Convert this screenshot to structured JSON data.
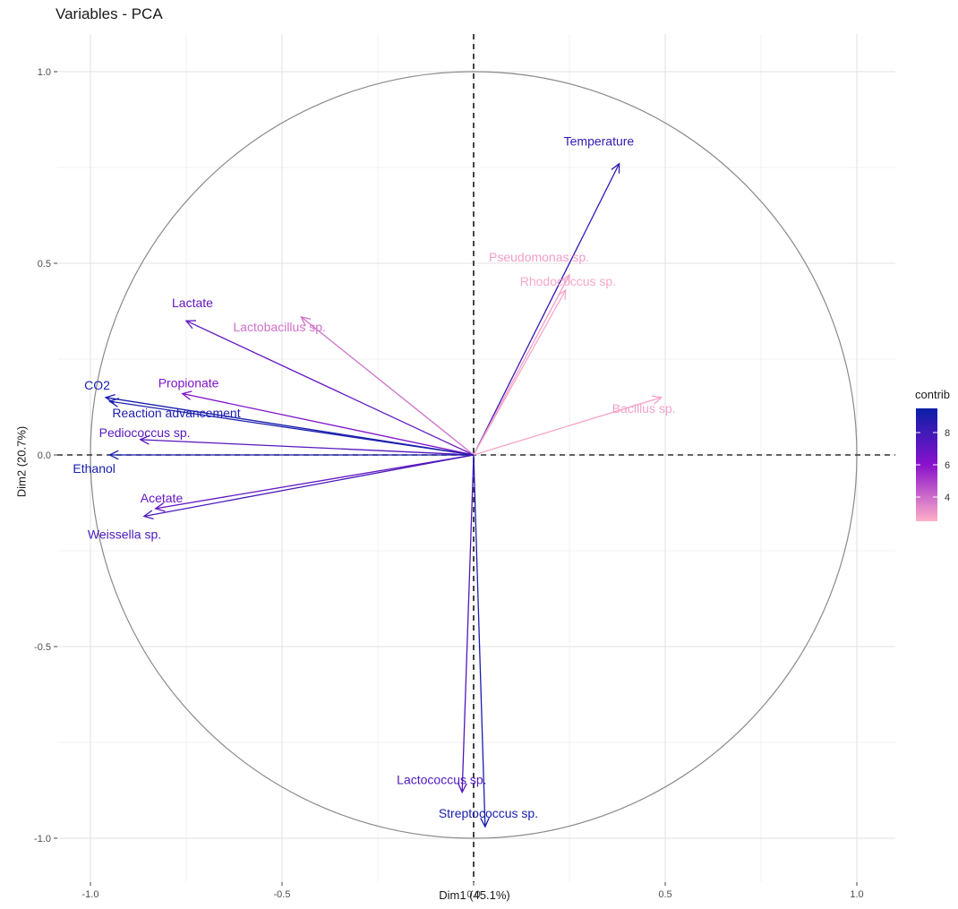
{
  "chart_data": {
    "type": "scatter",
    "subtype": "pca-variable-correlation-circle",
    "title": "Variables - PCA",
    "xlabel": "Dim1 (45.1%)",
    "ylabel": "Dim2 (20.7%)",
    "xlim": [
      -1.1,
      1.1
    ],
    "ylim": [
      -1.1,
      1.1
    ],
    "x_ticks": [
      "-1.0",
      "-0.5",
      "0.0",
      "0.5",
      "1.0"
    ],
    "y_ticks": [
      "-1.0",
      "-0.5",
      "0.0",
      "0.5",
      "1.0"
    ],
    "grid": true,
    "unit_circle": true,
    "legend": {
      "title": "contrib",
      "placement": "right",
      "ticks": [
        "4",
        "6",
        "8"
      ],
      "tick_values": [
        4,
        6,
        8
      ],
      "range": [
        2.5,
        9.5
      ],
      "color_low": "#ffb0c8",
      "color_mid": "#8a12cc",
      "color_high": "#0a1fa8"
    },
    "variables": [
      {
        "label": "Temperature",
        "x": 0.38,
        "y": 0.76,
        "contrib": 8.3
      },
      {
        "label": "Pseudomonas sp.",
        "x": 0.25,
        "y": 0.47,
        "contrib": 2.9
      },
      {
        "label": "Rhodococcus sp.",
        "x": 0.24,
        "y": 0.43,
        "contrib": 2.7
      },
      {
        "label": "Lactate",
        "x": -0.75,
        "y": 0.35,
        "contrib": 7.1
      },
      {
        "label": "Lactobacillus sp.",
        "x": -0.45,
        "y": 0.36,
        "contrib": 3.9
      },
      {
        "label": "CO2",
        "x": -0.96,
        "y": 0.15,
        "contrib": 9.2
      },
      {
        "label": "Propionate",
        "x": -0.76,
        "y": 0.16,
        "contrib": 6.3
      },
      {
        "label": "Reaction advancement",
        "x": -0.95,
        "y": 0.14,
        "contrib": 9.0
      },
      {
        "label": "Pediococcus sp.",
        "x": -0.87,
        "y": 0.04,
        "contrib": 7.4
      },
      {
        "label": "Ethanol",
        "x": -0.95,
        "y": 0.0,
        "contrib": 9.1
      },
      {
        "label": "Acetate",
        "x": -0.83,
        "y": -0.14,
        "contrib": 7.0
      },
      {
        "label": "Weissella sp.",
        "x": -0.86,
        "y": -0.16,
        "contrib": 7.8
      },
      {
        "label": "Bacillus sp.",
        "x": 0.49,
        "y": 0.15,
        "contrib": 2.8
      },
      {
        "label": "Lactococcus sp.",
        "x": -0.03,
        "y": -0.88,
        "contrib": 7.6
      },
      {
        "label": "Streptococcus sp.",
        "x": 0.03,
        "y": -0.97,
        "contrib": 9.1
      }
    ]
  }
}
